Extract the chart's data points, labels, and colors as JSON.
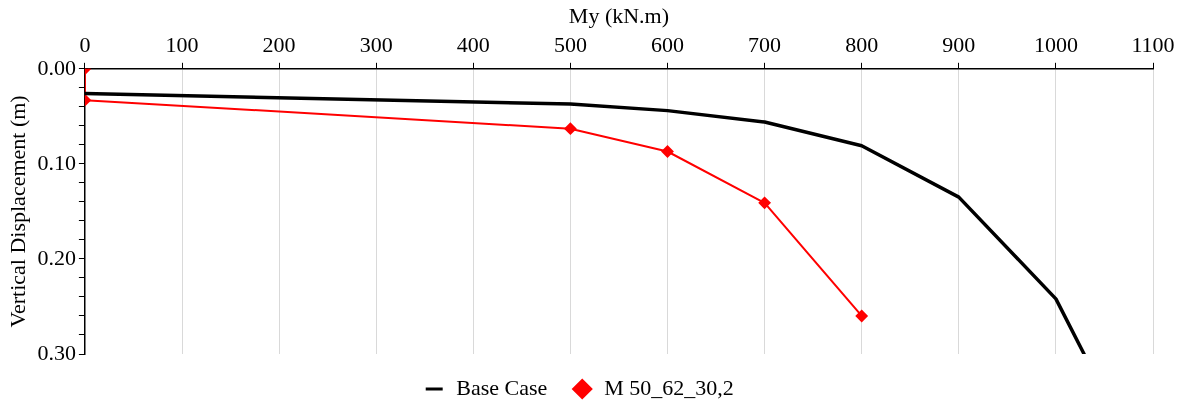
{
  "chart_data": {
    "type": "line",
    "xlabel": "My (kN.m)",
    "ylabel": "Vertical Displacement (m)",
    "xlim": [
      0,
      1100
    ],
    "xticks": [
      0,
      100,
      200,
      300,
      400,
      500,
      600,
      700,
      800,
      900,
      1000,
      1100
    ],
    "ylim": [
      0.3,
      0.0
    ],
    "yticks": [
      {
        "value": 0,
        "label": "0.00"
      },
      {
        "value": 0.02,
        "label": null
      },
      {
        "value": 0.04,
        "label": null
      },
      {
        "value": 0.06,
        "label": null
      },
      {
        "value": 0.08,
        "label": null
      },
      {
        "value": 0.1,
        "label": "0.10"
      },
      {
        "value": 0.12,
        "label": null
      },
      {
        "value": 0.14,
        "label": null
      },
      {
        "value": 0.16,
        "label": null
      },
      {
        "value": 0.18,
        "label": null
      },
      {
        "value": 0.2,
        "label": "0.20"
      },
      {
        "value": 0.22,
        "label": null
      },
      {
        "value": 0.24,
        "label": null
      },
      {
        "value": 0.26,
        "label": null
      },
      {
        "value": 0.28,
        "label": null
      },
      {
        "value": 0.3,
        "label": "0.30"
      }
    ],
    "grid": "x",
    "legend": "bottom",
    "series": [
      {
        "name": "Base Case",
        "color": "#000000",
        "marker": "none",
        "x": [
          0,
          500,
          600,
          700,
          800,
          900,
          1000,
          1029
        ],
        "values": [
          0.026,
          0.037,
          0.044,
          0.056,
          0.081,
          0.135,
          0.242,
          0.3
        ]
      },
      {
        "name": "M 50_62_30,2",
        "color": "#ff0000",
        "marker": "diamond",
        "x": [
          0,
          0,
          500,
          600,
          700,
          800
        ],
        "values": [
          0.0,
          0.033,
          0.063,
          0.087,
          0.141,
          0.26
        ]
      }
    ]
  }
}
